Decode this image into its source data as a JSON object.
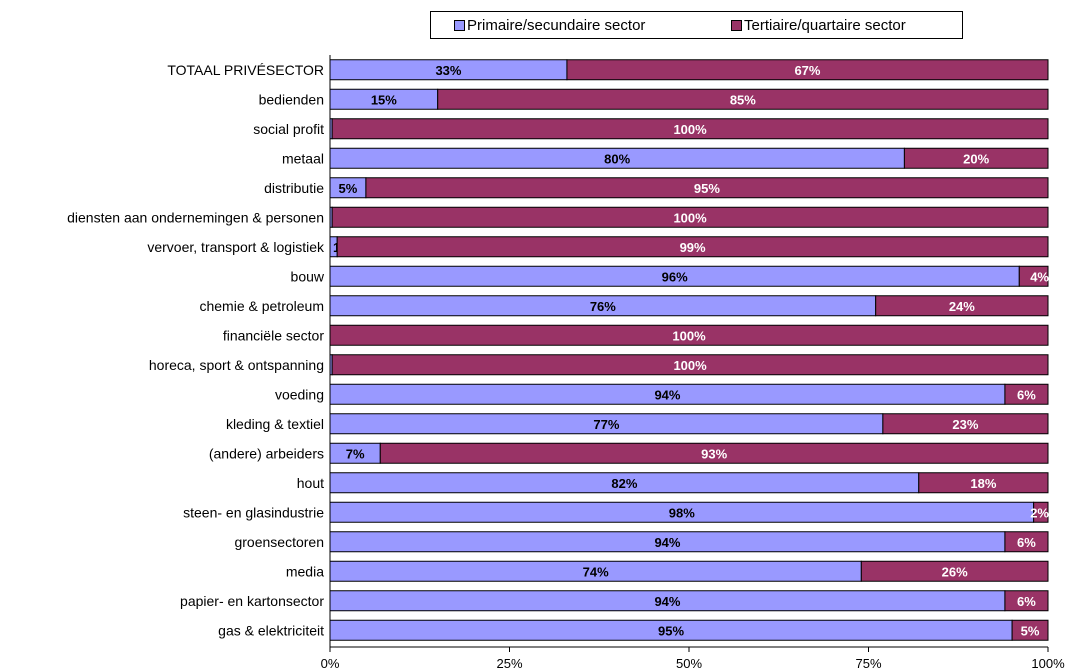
{
  "chart_data": {
    "type": "bar",
    "orientation": "horizontal",
    "stacked": true,
    "categories": [
      "TOTAAL PRIVÉSECTOR",
      "bedienden",
      "social profit",
      "metaal",
      "distributie",
      "diensten aan ondernemingen & personen",
      "vervoer, transport & logistiek",
      "bouw",
      "chemie & petroleum",
      "financiële sector",
      "horeca, sport & ontspanning",
      "voeding",
      "kleding & textiel",
      "(andere) arbeiders",
      "hout",
      "steen- en glasindustrie",
      "groensectoren",
      "media",
      "papier- en kartonsector",
      "gas & elektriciteit"
    ],
    "series": [
      {
        "name": "Primaire/secundaire sector",
        "color": "#9999ff",
        "values": [
          33,
          15,
          0.3,
          80,
          5,
          0.3,
          1,
          96,
          76,
          0,
          0.3,
          94,
          77,
          7,
          82,
          98,
          94,
          74,
          94,
          95
        ],
        "labels": [
          "33%",
          "15%",
          "",
          "80%",
          "5%",
          "",
          "1%",
          "96%",
          "76%",
          "",
          "",
          "94%",
          "77%",
          "7%",
          "82%",
          "98%",
          "94%",
          "74%",
          "94%",
          "95%"
        ]
      },
      {
        "name": "Tertiaire/quartaire sector",
        "color": "#993366",
        "values": [
          67,
          85,
          100,
          20,
          95,
          100,
          99,
          4,
          24,
          100,
          100,
          6,
          23,
          93,
          18,
          2,
          6,
          26,
          6,
          5
        ],
        "labels": [
          "67%",
          "85%",
          "100%",
          "20%",
          "95%",
          "100%",
          "99%",
          "4%",
          "24%",
          "100%",
          "100%",
          "6%",
          "23%",
          "93%",
          "18%",
          "2%",
          "6%",
          "26%",
          "6%",
          "5%"
        ]
      }
    ],
    "xaxis": {
      "ticks": [
        0,
        25,
        50,
        75,
        100
      ],
      "tick_labels": [
        "0%",
        "25%",
        "50%",
        "75%",
        "100%"
      ],
      "xlim": [
        0,
        100
      ]
    },
    "grid": false,
    "legend_position": "top"
  }
}
